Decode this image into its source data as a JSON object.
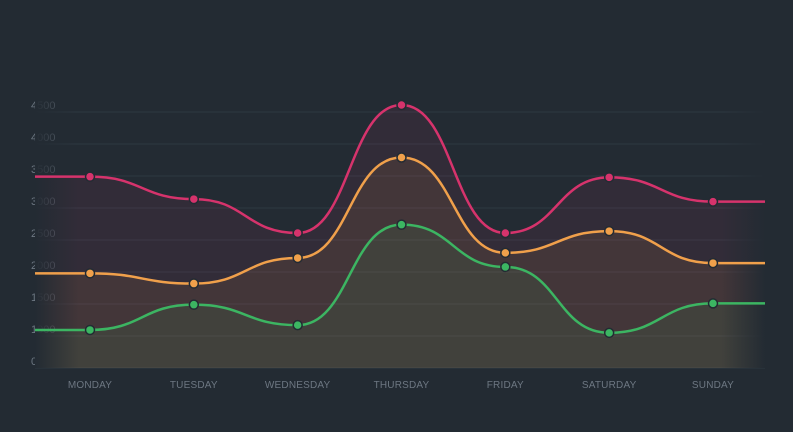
{
  "chart_data": {
    "type": "area",
    "categories": [
      "MONDAY",
      "TUESDAY",
      "WEDNESDAY",
      "THURSDAY",
      "FRIDAY",
      "SATURDAY",
      "SUNDAY"
    ],
    "yticks": [
      "0",
      "1000",
      "1500",
      "2000",
      "2500",
      "3000",
      "3500",
      "4000",
      "4500"
    ],
    "ylim": [
      0,
      4500
    ],
    "grid": true,
    "legend": "none",
    "series": [
      {
        "color": "#d6336c",
        "values": [
          3380,
          3030,
          2500,
          4500,
          2500,
          3370,
          2990
        ]
      },
      {
        "color": "#f0a04b",
        "values": [
          1870,
          1710,
          2110,
          3680,
          2190,
          2530,
          2030
        ]
      },
      {
        "color": "#3cb562",
        "values": [
          970,
          1380,
          1060,
          2630,
          1970,
          880,
          1400
        ]
      }
    ]
  }
}
